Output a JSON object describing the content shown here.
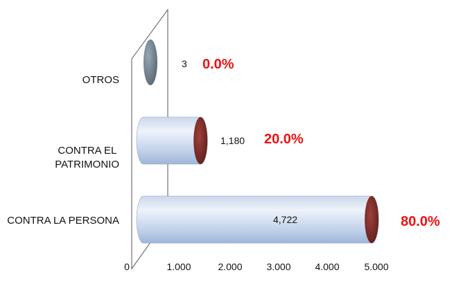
{
  "chart_data": {
    "type": "bar",
    "orientation": "horizontal",
    "categories": [
      "OTROS",
      "CONTRA EL PATRIMONIO",
      "CONTRA LA PERSONA"
    ],
    "category_lines": [
      [
        "OTROS"
      ],
      [
        "CONTRA EL",
        "PATRIMONIO"
      ],
      [
        "CONTRA LA PERSONA"
      ]
    ],
    "values": [
      3,
      1180,
      4722
    ],
    "value_labels": [
      "3",
      "1,180",
      "4,722"
    ],
    "percent_labels": [
      "0.0%",
      "20.0%",
      "80.0%"
    ],
    "xlim": [
      0,
      5000
    ],
    "xticks": [
      0,
      1000,
      2000,
      3000,
      4000,
      5000
    ],
    "xtick_labels": [
      "0",
      "1.000",
      "2.000",
      "3.000",
      "4.000",
      "5.000"
    ],
    "title": "",
    "xlabel": "",
    "ylabel": "",
    "grid": false,
    "legend": "none",
    "style": "3d-cylinder",
    "colors": {
      "bar_body_light": "#dfe8f5",
      "bar_body_dark": "#a9bfdf",
      "bar_end": "#7a2b27",
      "small_bar": "#6f7d8c",
      "percent_text": "#ee1111",
      "wall_line": "#555555"
    }
  }
}
